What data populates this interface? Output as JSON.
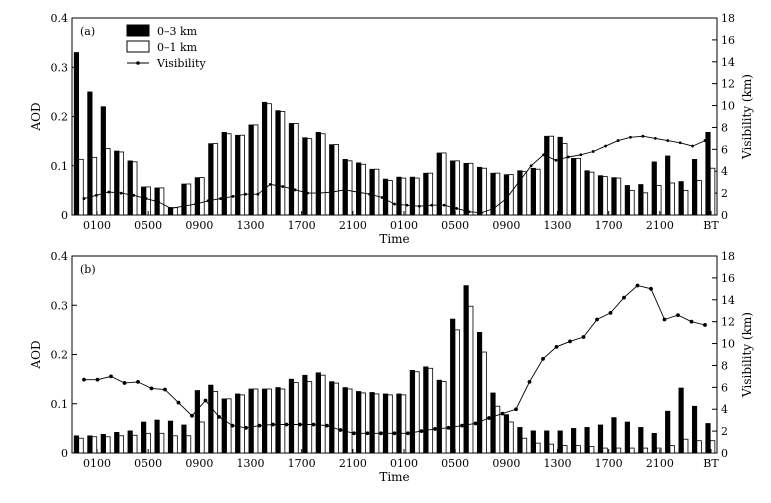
{
  "chart_data": [
    {
      "type": "bar",
      "panel_label": "(a)",
      "xlabel": "Time",
      "ylabel": "AOD",
      "y2label": "Visibility (km)",
      "ylim": [
        0,
        0.4
      ],
      "y2lim": [
        0,
        18
      ],
      "yticks": [
        "0",
        "0.1",
        "0.2",
        "0.3",
        "0.4"
      ],
      "y2ticks": [
        "0",
        "2",
        "4",
        "6",
        "8",
        "10",
        "12",
        "14",
        "16",
        "18"
      ],
      "xtick_labels": [
        "0100",
        "0500",
        "0900",
        "1300",
        "1700",
        "2100",
        "0100",
        "0500",
        "0900",
        "1300",
        "1700",
        "2100",
        "BT"
      ],
      "legend": {
        "placement": "top-left",
        "entries": [
          "0–3 km",
          "0–1 km",
          "Visibility"
        ]
      },
      "series": [
        {
          "name": "0–3 km",
          "values": [
            0.33,
            0.25,
            0.22,
            0.13,
            0.11,
            0.057,
            0.055,
            0.015,
            0.063,
            0.076,
            0.145,
            0.168,
            0.162,
            0.183,
            0.229,
            0.212,
            0.186,
            0.157,
            0.168,
            0.143,
            0.113,
            0.106,
            0.093,
            0.073,
            0.077,
            0.077,
            0.085,
            0.126,
            0.11,
            0.105,
            0.097,
            0.085,
            0.082,
            0.09,
            0.095,
            0.16,
            0.158,
            0.115,
            0.09,
            0.08,
            0.076,
            0.06,
            0.062,
            0.108,
            0.12,
            0.068,
            0.113,
            0.168
          ]
        },
        {
          "name": "0–1 km",
          "values": [
            0.113,
            0.117,
            0.135,
            0.128,
            0.108,
            0.057,
            0.055,
            0.015,
            0.063,
            0.076,
            0.145,
            0.165,
            0.162,
            0.183,
            0.226,
            0.21,
            0.186,
            0.155,
            0.165,
            0.143,
            0.11,
            0.103,
            0.093,
            0.07,
            0.075,
            0.075,
            0.085,
            0.126,
            0.11,
            0.105,
            0.095,
            0.085,
            0.082,
            0.088,
            0.093,
            0.16,
            0.145,
            0.115,
            0.087,
            0.078,
            0.075,
            0.05,
            0.045,
            0.06,
            0.065,
            0.05,
            0.07,
            0.095
          ]
        },
        {
          "name": "Visibility",
          "values": [
            1.5,
            1.8,
            2.1,
            2,
            1.8,
            1.5,
            1.2,
            0.6,
            0.8,
            1,
            1.3,
            1.5,
            1.7,
            1.9,
            1.9,
            2.8,
            2.6,
            2.3,
            2,
            2,
            2.1,
            2.3,
            2.1,
            1.9,
            1.6,
            1,
            0.9,
            0.8,
            0.9,
            0.9,
            0.6,
            0.3,
            0.2,
            0.6,
            1.5,
            3,
            4.5,
            5.5,
            5,
            5.3,
            5.5,
            5.8,
            6.3,
            6.8,
            7.1,
            7.2,
            7,
            6.8,
            6.6,
            6.3,
            6.8
          ]
        }
      ]
    },
    {
      "type": "bar",
      "panel_label": "(b)",
      "xlabel": "Time",
      "ylabel": "AOD",
      "y2label": "Visibility (km)",
      "ylim": [
        0,
        0.4
      ],
      "y2lim": [
        0,
        18
      ],
      "yticks": [
        "0",
        "0.1",
        "0.2",
        "0.3",
        "0.4"
      ],
      "y2ticks": [
        "0",
        "2",
        "4",
        "6",
        "8",
        "10",
        "12",
        "14",
        "16",
        "18"
      ],
      "xtick_labels": [
        "0100",
        "0500",
        "0900",
        "1300",
        "1700",
        "2100",
        "0100",
        "0500",
        "0900",
        "1300",
        "1700",
        "2100",
        "BT"
      ],
      "series": [
        {
          "name": "0–3 km",
          "values": [
            0.035,
            0.035,
            0.038,
            0.042,
            0.045,
            0.063,
            0.067,
            0.065,
            0.057,
            0.127,
            0.138,
            0.11,
            0.12,
            0.13,
            0.13,
            0.133,
            0.15,
            0.158,
            0.163,
            0.145,
            0.133,
            0.125,
            0.123,
            0.12,
            0.12,
            0.168,
            0.175,
            0.148,
            0.272,
            0.34,
            0.245,
            0.122,
            0.078,
            0.052,
            0.045,
            0.045,
            0.045,
            0.05,
            0.052,
            0.057,
            0.072,
            0.063,
            0.052,
            0.04,
            0.085,
            0.132,
            0.095,
            0.06
          ]
        },
        {
          "name": "0–1 km",
          "values": [
            0.03,
            0.033,
            0.033,
            0.035,
            0.036,
            0.04,
            0.04,
            0.035,
            0.035,
            0.063,
            0.125,
            0.11,
            0.118,
            0.13,
            0.13,
            0.13,
            0.143,
            0.145,
            0.158,
            0.142,
            0.13,
            0.122,
            0.12,
            0.118,
            0.118,
            0.165,
            0.172,
            0.145,
            0.25,
            0.298,
            0.205,
            0.095,
            0.063,
            0.03,
            0.02,
            0.018,
            0.015,
            0.015,
            0.013,
            0.01,
            0.01,
            0.01,
            0.01,
            0.01,
            0.015,
            0.028,
            0.025,
            0.025
          ]
        },
        {
          "name": "Visibility",
          "values": [
            6.7,
            6.7,
            7,
            6.4,
            6.5,
            5.9,
            5.8,
            4.6,
            3.4,
            4.8,
            3.3,
            2.5,
            2.3,
            2.5,
            2.6,
            2.6,
            2.6,
            2.6,
            2.5,
            2.1,
            1.8,
            1.8,
            1.8,
            1.8,
            1.8,
            2,
            2.2,
            2.3,
            2.5,
            2.7,
            3.2,
            3.6,
            4,
            6.5,
            8.6,
            9.7,
            10.2,
            10.6,
            12.2,
            12.8,
            14.2,
            15.3,
            15,
            12.2,
            12.6,
            12,
            11.7
          ]
        }
      ]
    }
  ]
}
